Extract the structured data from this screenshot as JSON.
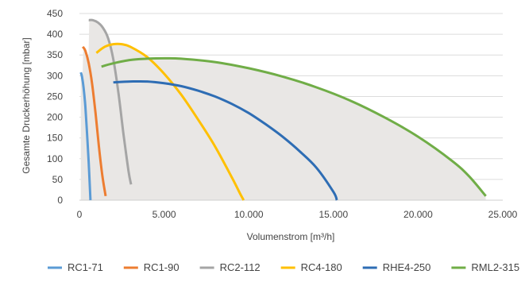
{
  "chart_data": {
    "type": "line",
    "xlabel": "Volumenstrom [m³/h]",
    "ylabel": "Gesamte Druckerhöhung [mbar]",
    "xlim": [
      0,
      25000
    ],
    "ylim": [
      0,
      450
    ],
    "x_ticks": [
      0,
      5000,
      10000,
      15000,
      20000,
      25000
    ],
    "x_tick_labels": [
      "0",
      "5.000",
      "10.000",
      "15.000",
      "20.000",
      "25.000"
    ],
    "y_ticks": [
      0,
      50,
      100,
      150,
      200,
      250,
      300,
      350,
      400,
      450
    ],
    "y_tick_labels": [
      "0",
      "50",
      "100",
      "150",
      "200",
      "250",
      "300",
      "350",
      "400",
      "450"
    ],
    "grid": "horizontal",
    "legend_position": "bottom",
    "envelope_color": "#e9e7e5",
    "series": [
      {
        "name": "RC1-71",
        "color": "#5b9bd5",
        "x": [
          80,
          150,
          250,
          350,
          450,
          550,
          650
        ],
        "y": [
          308,
          298,
          270,
          225,
          160,
          90,
          0
        ]
      },
      {
        "name": "RC1-90",
        "color": "#ed7d31",
        "x": [
          200,
          350,
          550,
          750,
          950,
          1150,
          1350,
          1550
        ],
        "y": [
          370,
          360,
          330,
          280,
          210,
          130,
          60,
          10
        ]
      },
      {
        "name": "RC2-112",
        "color": "#a5a5a5",
        "x": [
          550,
          800,
          1100,
          1400,
          1700,
          2000,
          2300,
          2600,
          2900,
          3050
        ],
        "y": [
          434,
          434,
          428,
          415,
          390,
          340,
          260,
          160,
          70,
          38
        ]
      },
      {
        "name": "RC4-180",
        "color": "#ffc000",
        "x": [
          1000,
          1500,
          2000,
          2500,
          3000,
          4000,
          5000,
          6000,
          7000,
          8000,
          9000,
          9500,
          9700
        ],
        "y": [
          355,
          370,
          376,
          376,
          370,
          345,
          305,
          255,
          195,
          130,
          55,
          15,
          0
        ]
      },
      {
        "name": "RHE4-250",
        "color": "#2e6db4",
        "x": [
          2000,
          3000,
          4000,
          5000,
          6000,
          7000,
          8000,
          9000,
          10000,
          11000,
          12000,
          13000,
          14000,
          15000,
          15200
        ],
        "y": [
          284,
          286,
          286,
          282,
          275,
          264,
          250,
          232,
          210,
          183,
          153,
          118,
          78,
          20,
          0
        ]
      },
      {
        "name": "RML2-315",
        "color": "#70ad47",
        "x": [
          1300,
          2000,
          3000,
          4000,
          5000,
          6000,
          8000,
          10000,
          12000,
          14000,
          16000,
          18000,
          20000,
          22000,
          23000,
          24000
        ],
        "y": [
          322,
          330,
          338,
          341,
          342,
          341,
          333,
          318,
          298,
          272,
          240,
          200,
          153,
          95,
          58,
          10
        ]
      }
    ]
  }
}
